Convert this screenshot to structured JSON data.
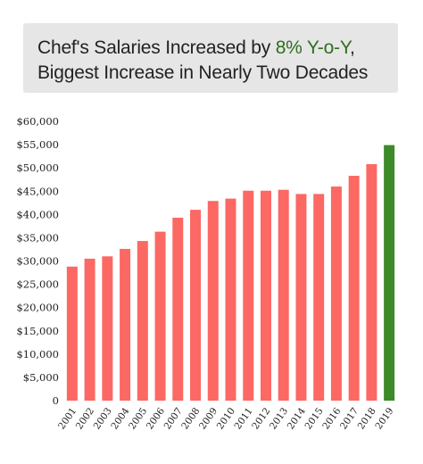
{
  "title": {
    "line1_prefix": "Chef's Salaries Increased by ",
    "line1_highlight": "8% Y-o-Y",
    "line1_suffix": ",",
    "line2": "Biggest Increase in Nearly Two Decades"
  },
  "colors": {
    "bar": "#fc6863",
    "highlight_bar": "#3c8a2a",
    "title_highlight": "#2e6f1e",
    "title_box": "#e6e6e6"
  },
  "chart_data": {
    "type": "bar",
    "title": "Chef's Salaries Increased by 8% Y-o-Y, Biggest Increase in Nearly Two Decades",
    "xlabel": "",
    "ylabel": "",
    "ylim": [
      0,
      60000
    ],
    "yticks": [
      0,
      5000,
      10000,
      15000,
      20000,
      25000,
      30000,
      35000,
      40000,
      45000,
      50000,
      55000,
      60000
    ],
    "ytick_labels": [
      "0",
      "$5,000",
      "$10,000",
      "$15,000",
      "$20,000",
      "$25,000",
      "$30,000",
      "$35,000",
      "$40,000",
      "$45,000",
      "$50,000",
      "$55,000",
      "$60,000"
    ],
    "grid": false,
    "categories": [
      "2001",
      "2002",
      "2003",
      "2004",
      "2005",
      "2006",
      "2007",
      "2008",
      "2009",
      "2010",
      "2011",
      "2012",
      "2013",
      "2014",
      "2015",
      "2016",
      "2017",
      "2018",
      "2019"
    ],
    "values": [
      28800,
      30500,
      31000,
      32600,
      34300,
      36300,
      39300,
      41000,
      42900,
      43400,
      45100,
      45100,
      45300,
      44400,
      44400,
      46000,
      48300,
      50800,
      54900
    ],
    "highlight_category": "2019"
  }
}
